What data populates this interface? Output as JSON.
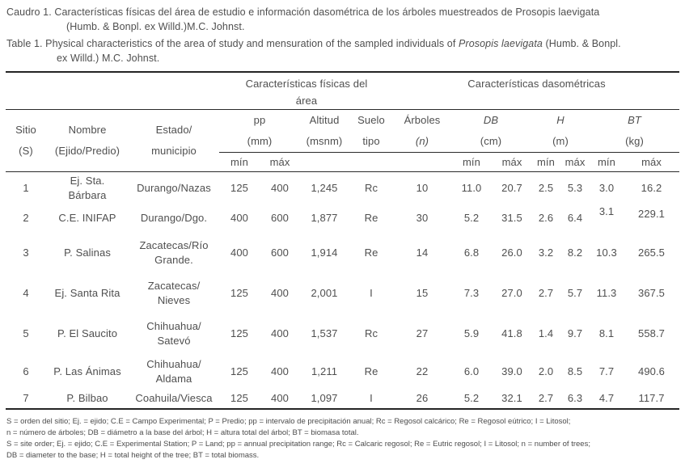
{
  "colors": {
    "text": "#4f4f4f",
    "rule": "#242424",
    "background": "#ffffff"
  },
  "caption_es": {
    "line1": "Caudro 1. Características físicas del área de estudio e información dasométrica de los árboles muestreados de Prosopis laevigata",
    "line2": "(Humb. & Bonpl. ex Willd.)M.C. Johnst."
  },
  "caption_en": {
    "line1_pre": "Table 1. Physical characteristics of the area of study and mensuration of the sampled individuals of ",
    "line1_italic": "Prosopis laevigata",
    "line1_post": " (Humb. & Bonpl.",
    "line2": "ex Willd.) M.C. Johnst."
  },
  "header": {
    "group_physical": "Características físicas del\nárea",
    "group_dasometric": "Características dasométricas",
    "col_sitio": "Sitio\n(S)",
    "col_nombre": "Nombre\n(Ejido/Predio)",
    "col_estado": "Estado/\nmunicipio",
    "pp": {
      "label": "pp",
      "unit": "(mm)"
    },
    "altitud": {
      "label": "Altitud",
      "unit": "(msnm)"
    },
    "suelo": {
      "label": "Suelo",
      "unit": "tipo"
    },
    "arboles": {
      "label": "Árboles",
      "unit": "(n)"
    },
    "db": {
      "label": "DB",
      "unit": "(cm)"
    },
    "h": {
      "label": "H",
      "unit": "(m)"
    },
    "bt": {
      "label": "BT",
      "unit": "(kg)"
    },
    "minmax": {
      "min": "mín",
      "max": "máx"
    }
  },
  "rows": [
    {
      "s": "1",
      "nombre": "Ej. Sta.\nBárbara",
      "estado": "Durango/Nazas",
      "pp_min": "125",
      "pp_max": "400",
      "altitud": "1,245",
      "suelo": "Rc",
      "n": "10",
      "db_min": "11.0",
      "db_max": "20.7",
      "h_min": "2.5",
      "h_max": "5.3",
      "bt_min": "3.0",
      "bt_max": "16.2"
    },
    {
      "s": "2",
      "nombre": "C.E. INIFAP",
      "estado": "Durango/Dgo.",
      "pp_min": "400",
      "pp_max": "600",
      "altitud": "1,877",
      "suelo": "Re",
      "n": "30",
      "db_min": "5.2",
      "db_max": "31.5",
      "h_min": "2.6",
      "h_max": "6.4",
      "bt_min": "3.1",
      "bt_max": "229.1"
    },
    {
      "s": "3",
      "nombre": "P. Salinas",
      "estado": "Zacatecas/Río\nGrande.",
      "pp_min": "400",
      "pp_max": "600",
      "altitud": "1,914",
      "suelo": "Re",
      "n": "14",
      "db_min": "6.8",
      "db_max": "26.0",
      "h_min": "3.2",
      "h_max": "8.2",
      "bt_min": "10.3",
      "bt_max": "265.5"
    },
    {
      "s": "4",
      "nombre": "Ej. Santa Rita",
      "estado": "Zacatecas/\nNieves",
      "pp_min": "125",
      "pp_max": "400",
      "altitud": "2,001",
      "suelo": "I",
      "n": "15",
      "db_min": "7.3",
      "db_max": "27.0",
      "h_min": "2.7",
      "h_max": "5.7",
      "bt_min": "11.3",
      "bt_max": "367.5"
    },
    {
      "s": "5",
      "nombre": "P. El Saucito",
      "estado": "Chihuahua/\nSatevó",
      "pp_min": "125",
      "pp_max": "400",
      "altitud": "1,537",
      "suelo": "Rc",
      "n": "27",
      "db_min": "5.9",
      "db_max": "41.8",
      "h_min": "1.4",
      "h_max": "9.7",
      "bt_min": "8.1",
      "bt_max": "558.7"
    },
    {
      "s": "6",
      "nombre": "P. Las Ánimas",
      "estado": "Chihuahua/\nAldama",
      "pp_min": "125",
      "pp_max": "400",
      "altitud": "1,211",
      "suelo": "Re",
      "n": "22",
      "db_min": "6.0",
      "db_max": "39.0",
      "h_min": "2.0",
      "h_max": "8.5",
      "bt_min": "7.7",
      "bt_max": "490.6"
    },
    {
      "s": "7",
      "nombre": "P. Bilbao",
      "estado": "Coahuila/Viesca",
      "pp_min": "125",
      "pp_max": "400",
      "altitud": "1,097",
      "suelo": "I",
      "n": "26",
      "db_min": "5.2",
      "db_max": "32.1",
      "h_min": "2.7",
      "h_max": "6.3",
      "bt_min": "4.7",
      "bt_max": "117.7"
    }
  ],
  "footnotes": {
    "lines": [
      "S = orden del sitio; Ej. = ejido; C.E = Campo Experimental; P = Predio; pp = intervalo de precipitación anual; Rc = Regosol calcárico; Re = Regosol eútrico; I = Litosol;",
      "n = número de árboles; DB = diámetro a la base del árbol; H = altura total del árbol; BT = biomasa total.",
      "S = site order; Ej. = ejido; C.E = Experimental Station; P = Land; pp = annual precipitation range; Rc = Calcaric regosol; Re = Eutric regosol; I = Litosol; n = number of trees;",
      "DB = diameter to the base; H = total height of the tree; BT = total biomass."
    ]
  }
}
